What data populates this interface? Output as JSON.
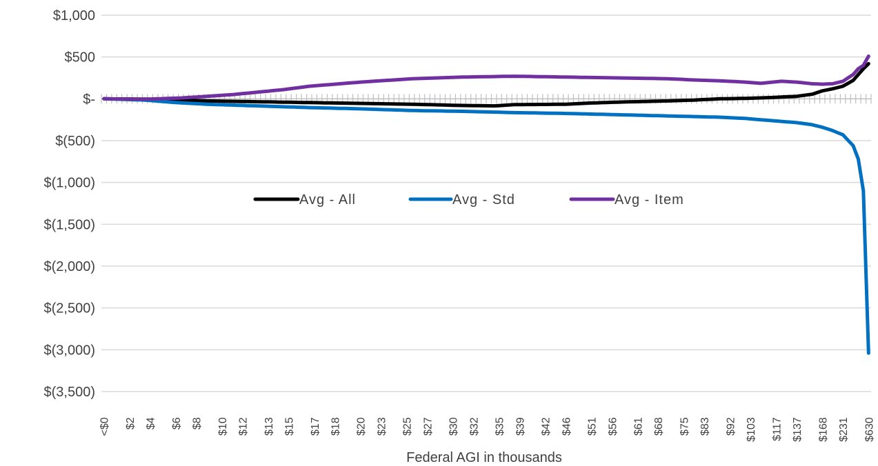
{
  "chart_data": {
    "type": "line",
    "title": "",
    "xlabel": "Federal AGI in thousands",
    "ylabel": "",
    "ylim": [
      -3500,
      1000
    ],
    "yticks": [
      1000,
      500,
      0,
      -500,
      -1000,
      -1500,
      -2000,
      -2500,
      -3000,
      -3500
    ],
    "ytick_labels": [
      "$1,000",
      "$500",
      "$-",
      "$(500)",
      "$(1,000)",
      "$(1,500)",
      "$(2,000)",
      "$(2,500)",
      "$(3,000)",
      "$(3,500)"
    ],
    "n_points": 150,
    "xtick_labels": [
      "<$0",
      "$2",
      "$4",
      "$6",
      "$8",
      "$10",
      "$12",
      "$13",
      "$15",
      "$17",
      "$18",
      "$20",
      "$23",
      "$25",
      "$27",
      "$30",
      "$32",
      "$35",
      "$39",
      "$42",
      "$46",
      "$51",
      "$56",
      "$61",
      "$68",
      "$75",
      "$83",
      "$92",
      "$103",
      "$117",
      "$137",
      "$168",
      "$231",
      "$630"
    ],
    "legend_position": "center",
    "grid": true,
    "series": [
      {
        "name": "Avg - All",
        "color": "#000000",
        "keypoints": [
          [
            0,
            0
          ],
          [
            10,
            -5
          ],
          [
            15,
            -15
          ],
          [
            20,
            -25
          ],
          [
            30,
            -35
          ],
          [
            40,
            -45
          ],
          [
            50,
            -55
          ],
          [
            60,
            -65
          ],
          [
            70,
            -80
          ],
          [
            76,
            -85
          ],
          [
            80,
            -70
          ],
          [
            90,
            -65
          ],
          [
            95,
            -50
          ],
          [
            100,
            -40
          ],
          [
            110,
            -25
          ],
          [
            115,
            -15
          ],
          [
            120,
            0
          ],
          [
            125,
            5
          ],
          [
            130,
            15
          ],
          [
            135,
            30
          ],
          [
            138,
            55
          ],
          [
            140,
            95
          ],
          [
            142,
            120
          ],
          [
            144,
            150
          ],
          [
            146,
            220
          ],
          [
            148,
            360
          ],
          [
            149,
            420
          ]
        ]
      },
      {
        "name": "Avg - Std",
        "color": "#0070c0",
        "keypoints": [
          [
            0,
            0
          ],
          [
            8,
            -15
          ],
          [
            14,
            -45
          ],
          [
            20,
            -65
          ],
          [
            30,
            -85
          ],
          [
            40,
            -105
          ],
          [
            50,
            -120
          ],
          [
            60,
            -140
          ],
          [
            70,
            -150
          ],
          [
            80,
            -165
          ],
          [
            90,
            -175
          ],
          [
            100,
            -190
          ],
          [
            110,
            -205
          ],
          [
            120,
            -220
          ],
          [
            125,
            -235
          ],
          [
            130,
            -260
          ],
          [
            135,
            -285
          ],
          [
            138,
            -310
          ],
          [
            140,
            -340
          ],
          [
            142,
            -380
          ],
          [
            144,
            -430
          ],
          [
            146,
            -560
          ],
          [
            147,
            -720
          ],
          [
            148,
            -1100
          ],
          [
            149,
            -3040
          ]
        ]
      },
      {
        "name": "Avg - Item",
        "color": "#7030a0",
        "keypoints": [
          [
            0,
            0
          ],
          [
            8,
            -5
          ],
          [
            15,
            10
          ],
          [
            20,
            30
          ],
          [
            25,
            50
          ],
          [
            30,
            80
          ],
          [
            35,
            110
          ],
          [
            40,
            150
          ],
          [
            50,
            200
          ],
          [
            60,
            240
          ],
          [
            70,
            260
          ],
          [
            80,
            270
          ],
          [
            90,
            260
          ],
          [
            100,
            250
          ],
          [
            110,
            240
          ],
          [
            115,
            225
          ],
          [
            120,
            215
          ],
          [
            125,
            200
          ],
          [
            128,
            185
          ],
          [
            132,
            210
          ],
          [
            135,
            200
          ],
          [
            138,
            180
          ],
          [
            140,
            175
          ],
          [
            142,
            180
          ],
          [
            144,
            210
          ],
          [
            146,
            290
          ],
          [
            147,
            360
          ],
          [
            148,
            400
          ],
          [
            149,
            510
          ]
        ]
      }
    ]
  }
}
